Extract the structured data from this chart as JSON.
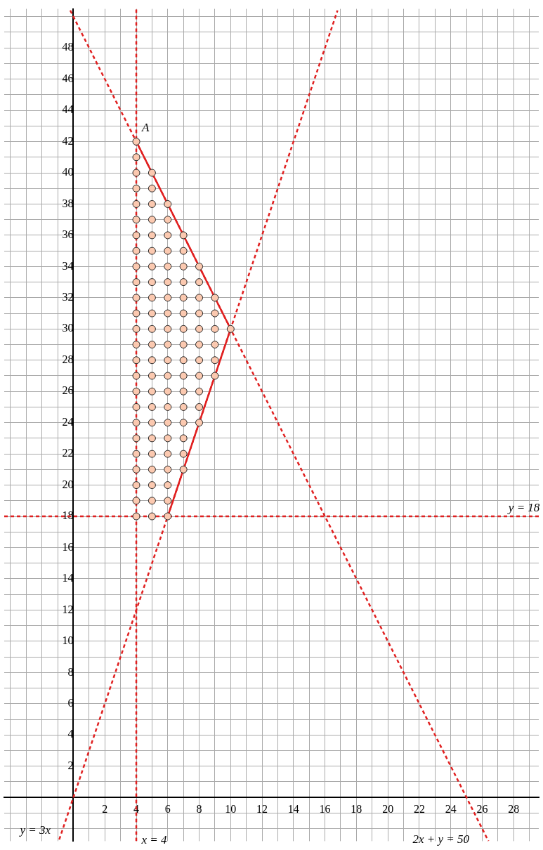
{
  "chart_data": {
    "type": "scatter",
    "grid": true,
    "legend": false,
    "xlim": [
      -4.4,
      29.6
    ],
    "ylim": [
      -2.8,
      50.5
    ],
    "xticks": [
      {
        "value": -4,
        "label": null
      },
      {
        "value": -3,
        "label": null
      },
      {
        "value": -2,
        "label": null
      },
      {
        "value": -1,
        "label": null
      },
      {
        "value": 0,
        "label": null
      },
      {
        "value": 1,
        "label": null
      },
      2,
      {
        "value": 3,
        "label": null
      },
      4,
      {
        "value": 5,
        "label": null
      },
      6,
      {
        "value": 7,
        "label": null
      },
      8,
      {
        "value": 9,
        "label": null
      },
      10,
      {
        "value": 11,
        "label": null
      },
      12,
      {
        "value": 13,
        "label": null
      },
      14,
      {
        "value": 15,
        "label": null
      },
      16,
      {
        "value": 17,
        "label": null
      },
      18,
      {
        "value": 19,
        "label": null
      },
      20,
      {
        "value": 21,
        "label": null
      },
      22,
      {
        "value": 23,
        "label": null
      },
      24,
      {
        "value": 25,
        "label": null
      },
      26,
      {
        "value": 27,
        "label": null
      },
      28,
      {
        "value": 29,
        "label": null
      }
    ],
    "yticks": [
      {
        "value": -2,
        "label": null
      },
      {
        "value": -1,
        "label": null
      },
      {
        "value": 0,
        "label": null
      },
      {
        "value": 1,
        "label": null
      },
      2,
      {
        "value": 3,
        "label": null
      },
      4,
      {
        "value": 5,
        "label": null
      },
      6,
      {
        "value": 7,
        "label": null
      },
      8,
      {
        "value": 9,
        "label": null
      },
      10,
      {
        "value": 11,
        "label": null
      },
      12,
      {
        "value": 13,
        "label": null
      },
      14,
      {
        "value": 15,
        "label": null
      },
      16,
      {
        "value": 17,
        "label": null
      },
      18,
      {
        "value": 19,
        "label": null
      },
      20,
      {
        "value": 21,
        "label": null
      },
      22,
      {
        "value": 23,
        "label": null
      },
      24,
      {
        "value": 25,
        "label": null
      },
      26,
      {
        "value": 27,
        "label": null
      },
      28,
      {
        "value": 29,
        "label": null
      },
      30,
      {
        "value": 31,
        "label": null
      },
      32,
      {
        "value": 33,
        "label": null
      },
      34,
      {
        "value": 35,
        "label": null
      },
      36,
      {
        "value": 37,
        "label": null
      },
      38,
      {
        "value": 39,
        "label": null
      },
      40,
      {
        "value": 41,
        "label": null
      },
      42,
      {
        "value": 43,
        "label": null
      },
      44,
      {
        "value": 45,
        "label": null
      },
      46,
      {
        "value": 47,
        "label": null
      },
      48,
      {
        "value": 49,
        "label": null
      },
      {
        "value": 50,
        "label": null
      }
    ],
    "series": [
      {
        "type": "line",
        "x": [
          4,
          4
        ],
        "values": [
          -2.8,
          50.5
        ],
        "color": "#e02020",
        "line_style": "dashed",
        "marker": "none"
      },
      {
        "type": "line",
        "x": [
          -4.4,
          29.6
        ],
        "values": [
          18,
          18
        ],
        "color": "#e02020",
        "line_style": "dashed",
        "marker": "none"
      },
      {
        "type": "line",
        "x": [
          -0.9,
          16.8
        ],
        "values": [
          -2.7,
          50.4
        ],
        "color": "#e02020",
        "line_style": "dashed",
        "marker": "none"
      },
      {
        "type": "line",
        "x": [
          -0.2,
          26.4
        ],
        "values": [
          50.4,
          -2.8
        ],
        "color": "#e02020",
        "line_style": "dashed",
        "marker": "none"
      },
      {
        "type": "line",
        "x": [
          4,
          10,
          6
        ],
        "values": [
          42,
          30,
          18
        ],
        "color": "#e02020",
        "line_style": "solid",
        "marker": "none"
      },
      {
        "type": "scatter",
        "marker": "circle",
        "color": "#fbc9b0",
        "x": [
          4,
          4,
          4,
          4,
          4,
          4,
          4,
          4,
          4,
          4,
          4,
          4,
          4,
          4,
          4,
          4,
          4,
          4,
          4,
          4,
          4,
          4,
          4,
          4,
          4,
          5,
          5,
          5,
          5,
          5,
          5,
          5,
          5,
          5,
          5,
          5,
          5,
          5,
          5,
          5,
          5,
          5,
          5,
          5,
          5,
          5,
          5,
          5,
          6,
          6,
          6,
          6,
          6,
          6,
          6,
          6,
          6,
          6,
          6,
          6,
          6,
          6,
          6,
          6,
          6,
          6,
          6,
          6,
          6,
          7,
          7,
          7,
          7,
          7,
          7,
          7,
          7,
          7,
          7,
          7,
          7,
          7,
          7,
          7,
          7,
          8,
          8,
          8,
          8,
          8,
          8,
          8,
          8,
          8,
          8,
          8,
          9,
          9,
          9,
          9,
          9,
          9,
          10
        ],
        "values": [
          18,
          19,
          20,
          21,
          22,
          23,
          24,
          25,
          26,
          27,
          28,
          29,
          30,
          31,
          32,
          33,
          34,
          35,
          36,
          37,
          38,
          39,
          40,
          41,
          42,
          18,
          19,
          20,
          21,
          22,
          23,
          24,
          25,
          26,
          27,
          28,
          29,
          30,
          31,
          32,
          33,
          34,
          35,
          36,
          37,
          38,
          39,
          40,
          18,
          19,
          20,
          21,
          22,
          23,
          24,
          25,
          26,
          27,
          28,
          29,
          30,
          31,
          32,
          33,
          34,
          35,
          36,
          37,
          38,
          21,
          22,
          23,
          24,
          25,
          26,
          27,
          28,
          29,
          30,
          31,
          32,
          33,
          34,
          35,
          36,
          24,
          25,
          26,
          27,
          28,
          29,
          30,
          31,
          32,
          33,
          34,
          27,
          28,
          29,
          30,
          31,
          32,
          30
        ]
      }
    ],
    "annotations": [
      "A",
      "x = 4",
      "y = 18",
      "y = 3x",
      "2x + y = 50"
    ]
  }
}
